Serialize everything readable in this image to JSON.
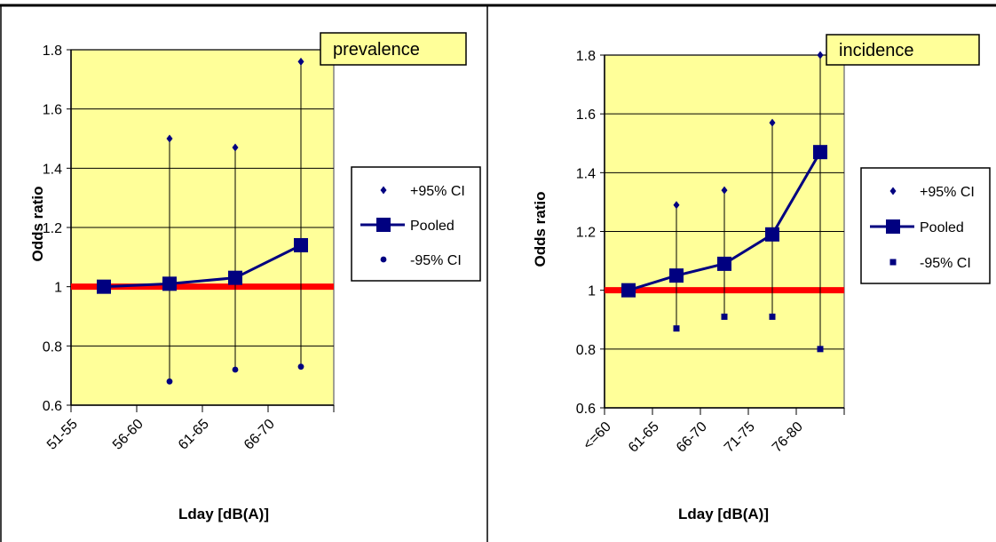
{
  "colors": {
    "plot_bg": "#ffff99",
    "series": "#000080",
    "reference": "#ff0000",
    "label_box": "#ffff99",
    "grid": "#000000",
    "panel_border": "#000000"
  },
  "chart_data": [
    {
      "type": "line",
      "title": "prevalence",
      "ylabel": "Odds ratio",
      "xlabel": "Lday [dB(A)]",
      "categories": [
        "51-55",
        "56-60",
        "61-65",
        "66-70"
      ],
      "ylim": [
        0.6,
        1.8
      ],
      "yticks": [
        0.6,
        0.8,
        1,
        1.2,
        1.4,
        1.6,
        1.8
      ],
      "ytick_labels": [
        "0.6",
        "0.8",
        "1",
        "1.2",
        "1.4",
        "1.6",
        "1.8"
      ],
      "grid": true,
      "legend_position": "right",
      "reference_line": 1,
      "series": [
        {
          "name": "+95% CI",
          "marker": "diamond",
          "values": [
            null,
            1.5,
            1.47,
            1.76
          ]
        },
        {
          "name": "Pooled",
          "marker": "square",
          "line": true,
          "values": [
            1.0,
            1.01,
            1.03,
            1.14
          ]
        },
        {
          "name": "-95% CI",
          "marker": "circle",
          "values": [
            null,
            0.68,
            0.72,
            0.73
          ]
        }
      ]
    },
    {
      "type": "line",
      "title": "incidence",
      "ylabel": "Odds ratio",
      "xlabel": "Lday [dB(A)]",
      "categories": [
        "<=60",
        "61-65",
        "66-70",
        "71-75",
        "76-80"
      ],
      "ylim": [
        0.6,
        1.8
      ],
      "yticks": [
        0.6,
        0.8,
        1,
        1.2,
        1.4,
        1.6,
        1.8
      ],
      "ytick_labels": [
        "0.6",
        "0.8",
        "1",
        "1.2",
        "1.4",
        "1.6",
        "1.8"
      ],
      "grid": true,
      "legend_position": "right",
      "reference_line": 1,
      "series": [
        {
          "name": "+95% CI",
          "marker": "diamond",
          "values": [
            null,
            1.29,
            1.34,
            1.57,
            1.8
          ]
        },
        {
          "name": "Pooled",
          "marker": "square",
          "line": true,
          "values": [
            1.0,
            1.05,
            1.09,
            1.19,
            1.47
          ]
        },
        {
          "name": "-95% CI",
          "marker": "square-small",
          "values": [
            null,
            0.87,
            0.91,
            0.91,
            0.8
          ]
        }
      ]
    }
  ]
}
